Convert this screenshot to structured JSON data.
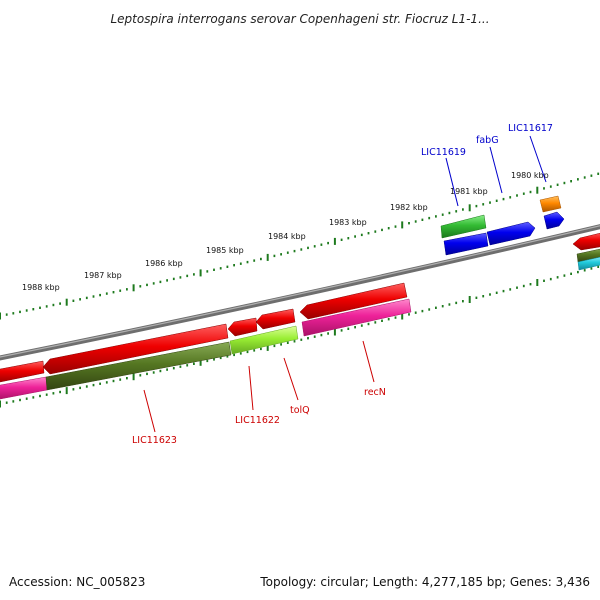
{
  "title": "Leptospira interrogans serovar Copenhageni str. Fiocruz L1-1...",
  "footer": {
    "accession": "Accession: NC_005823",
    "summary": "Topology: circular; Length: 4,277,185 bp; Genes: 3,436"
  },
  "scale_labels": [
    "1980 kbp",
    "1981 kbp",
    "1982 kbp",
    "1983 kbp",
    "1984 kbp",
    "1985 kbp",
    "1986 kbp",
    "1987 kbp",
    "1988 kbp"
  ],
  "gene_labels": [
    {
      "text": "LIC11617",
      "strand": "plus",
      "color": "#0000cc"
    },
    {
      "text": "fabG",
      "strand": "plus",
      "color": "#0000cc"
    },
    {
      "text": "LIC11619",
      "strand": "plus",
      "color": "#0000cc"
    },
    {
      "text": "recN",
      "strand": "minus",
      "color": "#cc0000"
    },
    {
      "text": "tolQ",
      "strand": "minus",
      "color": "#cc0000"
    },
    {
      "text": "LIC11622",
      "strand": "minus",
      "color": "#cc0000"
    },
    {
      "text": "LIC11623",
      "strand": "minus",
      "color": "#cc0000"
    }
  ],
  "colors": {
    "backbone": "#7a7a7a",
    "ticks": "#1e7a1e",
    "plus_strand_gene": "#0000ee",
    "minus_strand_gene": "#ee0000",
    "cog_green": "#33bb33",
    "cog_orange": "#ff8800",
    "cog_pink": "#ee2299",
    "cog_olive": "#557722",
    "cog_lime": "#99ee33",
    "cog_cyan": "#22ccdd"
  }
}
